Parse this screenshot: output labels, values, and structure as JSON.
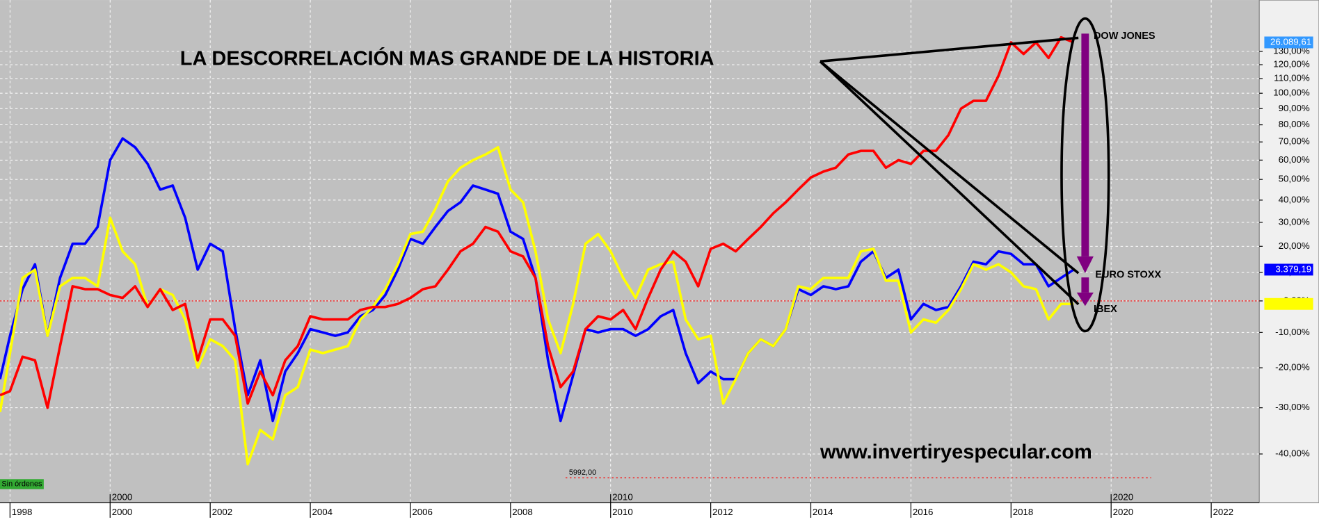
{
  "chart_data": {
    "type": "line",
    "title": "LA DESCORRELACIÓN MAS GRANDE DE LA HISTORIA",
    "website": "www.invertiryespecular.com",
    "status": "Sin órdenes",
    "log_scale": true,
    "grid": true,
    "zero_line": true,
    "xlim": [
      1997.8,
      2022.96
    ],
    "xticks": [
      1998,
      2000,
      2002,
      2004,
      2006,
      2008,
      2010,
      2012,
      2014,
      2016,
      2018,
      2020,
      2022
    ],
    "decade_ticks": [
      2000,
      2010,
      2020
    ],
    "ylim": [
      -49,
      173
    ],
    "yticks": [
      {
        "value": -40,
        "label": "-40,00%"
      },
      {
        "value": -30,
        "label": "-30,00%"
      },
      {
        "value": -20,
        "label": "-20,00%"
      },
      {
        "value": -10,
        "label": "-10,00%"
      },
      {
        "value": 0,
        "label": "0,00%"
      },
      {
        "value": 10,
        "label": "10,00%"
      },
      {
        "value": 20,
        "label": "20,00%"
      },
      {
        "value": 30,
        "label": "30,00%"
      },
      {
        "value": 40,
        "label": "40,00%"
      },
      {
        "value": 50,
        "label": "50,00%"
      },
      {
        "value": 60,
        "label": "60,00%"
      },
      {
        "value": 70,
        "label": "70,00%"
      },
      {
        "value": 80,
        "label": "80,00%"
      },
      {
        "value": 90,
        "label": "90,00%"
      },
      {
        "value": 100,
        "label": "100,00%"
      },
      {
        "value": 110,
        "label": "110,00%"
      },
      {
        "value": 120,
        "label": "120,00%"
      },
      {
        "value": 130,
        "label": "130,00%"
      }
    ],
    "reference_line": {
      "value": -44.6,
      "label": "5992,00",
      "x": [
        2009.1,
        2020.8
      ]
    },
    "x": [
      1997.8,
      1998,
      1998.25,
      1998.5,
      1998.75,
      1999,
      1999.25,
      1999.5,
      1999.75,
      2000,
      2000.25,
      2000.5,
      2000.75,
      2001,
      2001.25,
      2001.5,
      2001.75,
      2002,
      2002.25,
      2002.5,
      2002.75,
      2003,
      2003.25,
      2003.5,
      2003.75,
      2004,
      2004.25,
      2004.5,
      2004.75,
      2005,
      2005.25,
      2005.5,
      2005.75,
      2006,
      2006.25,
      2006.5,
      2006.75,
      2007,
      2007.25,
      2007.5,
      2007.75,
      2008,
      2008.25,
      2008.5,
      2008.75,
      2009,
      2009.25,
      2009.5,
      2009.75,
      2010,
      2010.25,
      2010.5,
      2010.75,
      2011,
      2011.25,
      2011.5,
      2011.75,
      2012,
      2012.25,
      2012.5,
      2012.75,
      2013,
      2013.25,
      2013.5,
      2013.75,
      2014,
      2014.25,
      2014.5,
      2014.75,
      2015,
      2015.25,
      2015.5,
      2015.75,
      2016,
      2016.25,
      2016.5,
      2016.75,
      2017,
      2017.25,
      2017.5,
      2017.75,
      2018,
      2018.25,
      2018.5,
      2018.75,
      2019,
      2019.25
    ],
    "series": [
      {
        "name": "DOW JONES",
        "color": "#ff0000",
        "last_label": "26.089,61",
        "label_color": "#3399ff",
        "values": [
          -27,
          -26,
          -17,
          -18,
          -30,
          -14,
          5,
          4,
          4,
          2,
          1,
          5,
          -2,
          4,
          -3,
          -1,
          -18,
          -6,
          -6,
          -11,
          -29,
          -21,
          -27,
          -18,
          -14,
          -5,
          -6,
          -6,
          -6,
          -3,
          -2,
          -2,
          -1,
          1,
          4,
          5,
          11,
          18,
          21,
          28,
          26,
          18,
          16,
          8,
          -14,
          -25,
          -21,
          -9,
          -5,
          -6,
          -3,
          -9,
          1,
          11,
          18,
          14,
          5,
          19,
          21,
          18,
          23,
          28,
          34,
          39,
          45,
          51,
          54,
          56,
          63,
          65,
          65,
          56,
          60,
          58,
          65,
          65,
          74,
          90,
          95,
          95,
          112,
          137,
          128,
          137,
          125,
          141,
          137
        ]
      },
      {
        "name": "EURO STOXX",
        "color": "#0000ff",
        "last_label": "3.379,19",
        "label_color": "#0000ff",
        "values": [
          -23,
          -11,
          4,
          13,
          -11,
          8,
          21,
          21,
          28,
          60,
          72,
          67,
          58,
          45,
          47,
          32,
          11,
          21,
          18,
          -9,
          -27,
          -18,
          -33,
          -21,
          -16,
          -9,
          -10,
          -11,
          -10,
          -5,
          -3,
          2,
          11,
          23,
          21,
          28,
          35,
          39,
          47,
          45,
          43,
          26,
          23,
          8,
          -18,
          -33,
          -22,
          -9,
          -10,
          -9,
          -9,
          -11,
          -9,
          -5,
          -3,
          -16,
          -24,
          -21,
          -23,
          -23,
          -16,
          -12,
          -14,
          -9,
          4,
          2,
          5,
          4,
          5,
          14,
          18,
          8,
          11,
          -6,
          -1,
          -3,
          -2,
          5,
          14,
          13,
          18,
          17,
          13,
          13,
          5,
          8,
          11
        ]
      },
      {
        "name": "IBEX",
        "color": "#ffff00",
        "label_color": "#ffff00",
        "values": [
          -31,
          -16,
          8,
          11,
          -11,
          5,
          8,
          8,
          5,
          32,
          18,
          13,
          -2,
          4,
          2,
          -6,
          -20,
          -12,
          -14,
          -18,
          -42,
          -35,
          -37,
          -27,
          -25,
          -15,
          -16,
          -15,
          -14,
          -6,
          -2,
          4,
          13,
          25,
          26,
          36,
          49,
          56,
          60,
          63,
          67,
          45,
          39,
          18,
          -6,
          -16,
          -1,
          21,
          25,
          18,
          8,
          1,
          11,
          13,
          14,
          -6,
          -12,
          -11,
          -29,
          -23,
          -16,
          -12,
          -14,
          -9,
          5,
          4,
          8,
          8,
          8,
          18,
          19,
          7,
          7,
          -10,
          -6,
          -7,
          -3,
          4,
          13,
          11,
          13,
          10,
          5,
          4,
          -6,
          -1,
          -1
        ]
      }
    ]
  }
}
